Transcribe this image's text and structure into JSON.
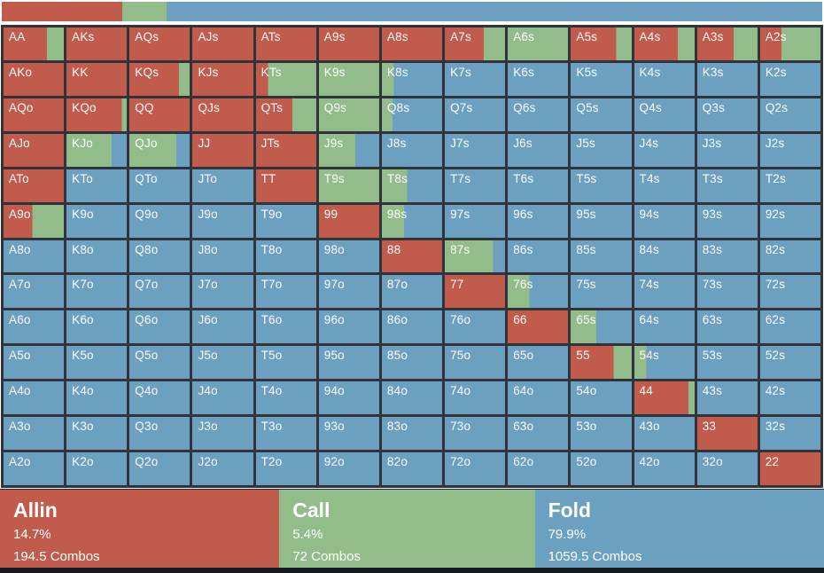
{
  "colors": {
    "allin": "#c15c4c",
    "call": "#92bd8b",
    "fold": "#6ca0c0",
    "grid_line": "#30343a",
    "bottom_bar": "#151a20",
    "text": "#ffffff"
  },
  "top_bar": {
    "segments": [
      {
        "action": "allin",
        "pct": 14.7
      },
      {
        "action": "call",
        "pct": 5.4
      },
      {
        "action": "fold",
        "pct": 79.9
      }
    ]
  },
  "legend": {
    "items": [
      {
        "action": "allin",
        "label": "Allin",
        "pct": "14.7%",
        "combos": "194.5 Combos",
        "width_pct": 33.9
      },
      {
        "action": "call",
        "label": "Call",
        "pct": "5.4%",
        "combos": "72 Combos",
        "width_pct": 31.0
      },
      {
        "action": "fold",
        "label": "Fold",
        "pct": "79.9%",
        "combos": "1059.5 Combos",
        "width_pct": 35.1
      }
    ]
  },
  "chart_data": {
    "type": "heatmap",
    "title": "Preflop hand range matrix (13x13), cell fill split by action percentage",
    "actions": [
      "allin",
      "call",
      "fold"
    ],
    "totals": {
      "allin_pct": 14.7,
      "allin_combos": 194.5,
      "call_pct": 5.4,
      "call_combos": 72,
      "fold_pct": 79.9,
      "fold_combos": 1059.5
    },
    "cell_format": [
      "hand",
      "allin_pct",
      "call_pct",
      "fold_pct"
    ],
    "rows": [
      [
        [
          "AA",
          72,
          28,
          0
        ],
        [
          "AKs",
          100,
          0,
          0
        ],
        [
          "AQs",
          100,
          0,
          0
        ],
        [
          "AJs",
          100,
          0,
          0
        ],
        [
          "ATs",
          100,
          0,
          0
        ],
        [
          "A9s",
          100,
          0,
          0
        ],
        [
          "A8s",
          100,
          0,
          0
        ],
        [
          "A7s",
          65,
          35,
          0
        ],
        [
          "A6s",
          0,
          100,
          0
        ],
        [
          "A5s",
          75,
          25,
          0
        ],
        [
          "A4s",
          72,
          28,
          0
        ],
        [
          "A3s",
          60,
          40,
          0
        ],
        [
          "A2s",
          35,
          65,
          0
        ]
      ],
      [
        [
          "AKo",
          100,
          0,
          0
        ],
        [
          "KK",
          100,
          0,
          0
        ],
        [
          "KQs",
          82,
          18,
          0
        ],
        [
          "KJs",
          100,
          0,
          0
        ],
        [
          "KTs",
          20,
          80,
          0
        ],
        [
          "K9s",
          0,
          100,
          0
        ],
        [
          "K8s",
          0,
          20,
          80
        ],
        [
          "K7s",
          0,
          0,
          100
        ],
        [
          "K6s",
          0,
          0,
          100
        ],
        [
          "K5s",
          0,
          0,
          100
        ],
        [
          "K4s",
          0,
          0,
          100
        ],
        [
          "K3s",
          0,
          0,
          100
        ],
        [
          "K2s",
          0,
          0,
          100
        ]
      ],
      [
        [
          "AQo",
          100,
          0,
          0
        ],
        [
          "KQo",
          92,
          8,
          0
        ],
        [
          "QQ",
          100,
          0,
          0
        ],
        [
          "QJs",
          100,
          0,
          0
        ],
        [
          "QTs",
          60,
          40,
          0
        ],
        [
          "Q9s",
          0,
          100,
          0
        ],
        [
          "Q8s",
          0,
          18,
          82
        ],
        [
          "Q7s",
          0,
          0,
          100
        ],
        [
          "Q6s",
          0,
          0,
          100
        ],
        [
          "Q5s",
          0,
          0,
          100
        ],
        [
          "Q4s",
          0,
          0,
          100
        ],
        [
          "Q3s",
          0,
          0,
          100
        ],
        [
          "Q2s",
          0,
          0,
          100
        ]
      ],
      [
        [
          "AJo",
          100,
          0,
          0
        ],
        [
          "KJo",
          0,
          75,
          25
        ],
        [
          "QJo",
          0,
          78,
          22
        ],
        [
          "JJ",
          100,
          0,
          0
        ],
        [
          "JTs",
          100,
          0,
          0
        ],
        [
          "J9s",
          0,
          60,
          40
        ],
        [
          "J8s",
          0,
          0,
          100
        ],
        [
          "J7s",
          0,
          0,
          100
        ],
        [
          "J6s",
          0,
          0,
          100
        ],
        [
          "J5s",
          0,
          0,
          100
        ],
        [
          "J4s",
          0,
          0,
          100
        ],
        [
          "J3s",
          0,
          0,
          100
        ],
        [
          "J2s",
          0,
          0,
          100
        ]
      ],
      [
        [
          "ATo",
          100,
          0,
          0
        ],
        [
          "KTo",
          0,
          0,
          100
        ],
        [
          "QTo",
          0,
          0,
          100
        ],
        [
          "JTo",
          0,
          0,
          100
        ],
        [
          "TT",
          100,
          0,
          0
        ],
        [
          "T9s",
          0,
          100,
          0
        ],
        [
          "T8s",
          0,
          42,
          58
        ],
        [
          "T7s",
          0,
          0,
          100
        ],
        [
          "T6s",
          0,
          0,
          100
        ],
        [
          "T5s",
          0,
          0,
          100
        ],
        [
          "T4s",
          0,
          0,
          100
        ],
        [
          "T3s",
          0,
          0,
          100
        ],
        [
          "T2s",
          0,
          0,
          100
        ]
      ],
      [
        [
          "A9o",
          48,
          52,
          0
        ],
        [
          "K9o",
          0,
          0,
          100
        ],
        [
          "Q9o",
          0,
          0,
          100
        ],
        [
          "J9o",
          0,
          0,
          100
        ],
        [
          "T9o",
          0,
          0,
          100
        ],
        [
          "99",
          100,
          0,
          0
        ],
        [
          "98s",
          0,
          37,
          63
        ],
        [
          "97s",
          0,
          0,
          100
        ],
        [
          "96s",
          0,
          0,
          100
        ],
        [
          "95s",
          0,
          0,
          100
        ],
        [
          "94s",
          0,
          0,
          100
        ],
        [
          "93s",
          0,
          0,
          100
        ],
        [
          "92s",
          0,
          0,
          100
        ]
      ],
      [
        [
          "A8o",
          0,
          0,
          100
        ],
        [
          "K8o",
          0,
          0,
          100
        ],
        [
          "Q8o",
          0,
          0,
          100
        ],
        [
          "J8o",
          0,
          0,
          100
        ],
        [
          "T8o",
          0,
          0,
          100
        ],
        [
          "98o",
          0,
          0,
          100
        ],
        [
          "88",
          100,
          0,
          0
        ],
        [
          "87s",
          0,
          80,
          20
        ],
        [
          "86s",
          0,
          0,
          100
        ],
        [
          "85s",
          0,
          0,
          100
        ],
        [
          "84s",
          0,
          0,
          100
        ],
        [
          "83s",
          0,
          0,
          100
        ],
        [
          "82s",
          0,
          0,
          100
        ]
      ],
      [
        [
          "A7o",
          0,
          0,
          100
        ],
        [
          "K7o",
          0,
          0,
          100
        ],
        [
          "Q7o",
          0,
          0,
          100
        ],
        [
          "J7o",
          0,
          0,
          100
        ],
        [
          "T7o",
          0,
          0,
          100
        ],
        [
          "97o",
          0,
          0,
          100
        ],
        [
          "87o",
          0,
          0,
          100
        ],
        [
          "77",
          100,
          0,
          0
        ],
        [
          "76s",
          0,
          36,
          64
        ],
        [
          "75s",
          0,
          0,
          100
        ],
        [
          "74s",
          0,
          0,
          100
        ],
        [
          "73s",
          0,
          0,
          100
        ],
        [
          "72s",
          0,
          0,
          100
        ]
      ],
      [
        [
          "A6o",
          0,
          0,
          100
        ],
        [
          "K6o",
          0,
          0,
          100
        ],
        [
          "Q6o",
          0,
          0,
          100
        ],
        [
          "J6o",
          0,
          0,
          100
        ],
        [
          "T6o",
          0,
          0,
          100
        ],
        [
          "96o",
          0,
          0,
          100
        ],
        [
          "86o",
          0,
          0,
          100
        ],
        [
          "76o",
          0,
          0,
          100
        ],
        [
          "66",
          100,
          0,
          0
        ],
        [
          "65s",
          0,
          42,
          58
        ],
        [
          "64s",
          0,
          0,
          100
        ],
        [
          "63s",
          0,
          0,
          100
        ],
        [
          "62s",
          0,
          0,
          100
        ]
      ],
      [
        [
          "A5o",
          0,
          0,
          100
        ],
        [
          "K5o",
          0,
          0,
          100
        ],
        [
          "Q5o",
          0,
          0,
          100
        ],
        [
          "J5o",
          0,
          0,
          100
        ],
        [
          "T5o",
          0,
          0,
          100
        ],
        [
          "95o",
          0,
          0,
          100
        ],
        [
          "85o",
          0,
          0,
          100
        ],
        [
          "75o",
          0,
          0,
          100
        ],
        [
          "65o",
          0,
          0,
          100
        ],
        [
          "55",
          70,
          30,
          0
        ],
        [
          "54s",
          0,
          20,
          80
        ],
        [
          "53s",
          0,
          0,
          100
        ],
        [
          "52s",
          0,
          0,
          100
        ]
      ],
      [
        [
          "A4o",
          0,
          0,
          100
        ],
        [
          "K4o",
          0,
          0,
          100
        ],
        [
          "Q4o",
          0,
          0,
          100
        ],
        [
          "J4o",
          0,
          0,
          100
        ],
        [
          "T4o",
          0,
          0,
          100
        ],
        [
          "94o",
          0,
          0,
          100
        ],
        [
          "84o",
          0,
          0,
          100
        ],
        [
          "74o",
          0,
          0,
          100
        ],
        [
          "64o",
          0,
          0,
          100
        ],
        [
          "54o",
          0,
          0,
          100
        ],
        [
          "44",
          90,
          10,
          0
        ],
        [
          "43s",
          0,
          0,
          100
        ],
        [
          "42s",
          0,
          0,
          100
        ]
      ],
      [
        [
          "A3o",
          0,
          0,
          100
        ],
        [
          "K3o",
          0,
          0,
          100
        ],
        [
          "Q3o",
          0,
          0,
          100
        ],
        [
          "J3o",
          0,
          0,
          100
        ],
        [
          "T3o",
          0,
          0,
          100
        ],
        [
          "93o",
          0,
          0,
          100
        ],
        [
          "83o",
          0,
          0,
          100
        ],
        [
          "73o",
          0,
          0,
          100
        ],
        [
          "63o",
          0,
          0,
          100
        ],
        [
          "53o",
          0,
          0,
          100
        ],
        [
          "43o",
          0,
          0,
          100
        ],
        [
          "33",
          100,
          0,
          0
        ],
        [
          "32s",
          0,
          0,
          100
        ]
      ],
      [
        [
          "A2o",
          0,
          0,
          100
        ],
        [
          "K2o",
          0,
          0,
          100
        ],
        [
          "Q2o",
          0,
          0,
          100
        ],
        [
          "J2o",
          0,
          0,
          100
        ],
        [
          "T2o",
          0,
          0,
          100
        ],
        [
          "92o",
          0,
          0,
          100
        ],
        [
          "82o",
          0,
          0,
          100
        ],
        [
          "72o",
          0,
          0,
          100
        ],
        [
          "62o",
          0,
          0,
          100
        ],
        [
          "52o",
          0,
          0,
          100
        ],
        [
          "42o",
          0,
          0,
          100
        ],
        [
          "32o",
          0,
          0,
          100
        ],
        [
          "22",
          100,
          0,
          0
        ]
      ]
    ]
  }
}
